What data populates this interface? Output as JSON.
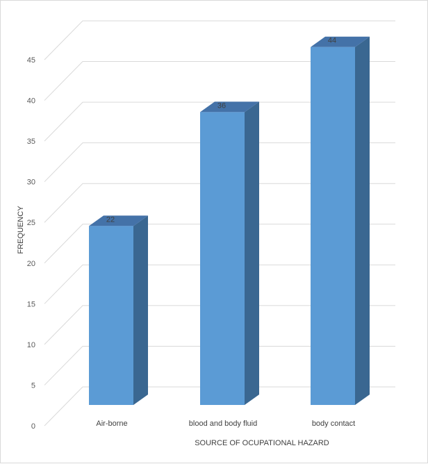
{
  "chart_data": {
    "type": "bar",
    "style": "3d-column",
    "categories": [
      "Air-borne",
      "blood and body fluid",
      "body contact"
    ],
    "values": [
      22,
      36,
      44
    ],
    "data_labels": [
      "22",
      "36",
      "44"
    ],
    "title": "",
    "xlabel": "SOURCE OF OCUPATIONAL  HAZARD",
    "ylabel": "FREQUENCY",
    "ylim": [
      0,
      45
    ],
    "yticks": [
      0,
      5,
      10,
      15,
      20,
      25,
      30,
      35,
      40,
      45
    ],
    "grid": true,
    "legend": "none",
    "colors": {
      "bar_front": "#5b9bd5",
      "bar_side": "#3a6791",
      "bar_top": "#4472a8",
      "grid": "#d9d9d9"
    }
  }
}
